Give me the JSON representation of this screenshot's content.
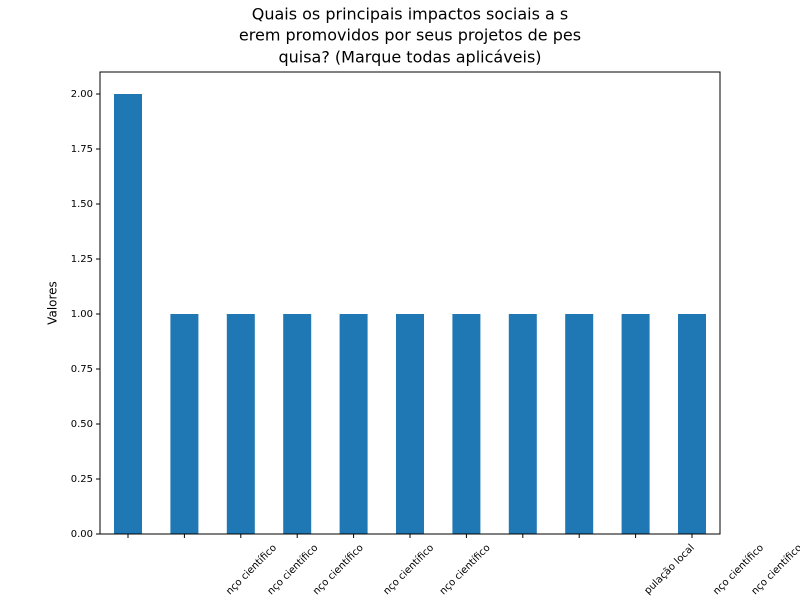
{
  "chart_data": {
    "type": "bar",
    "title": [
      "Quais os principais impactos sociais a s",
      "erem promovidos por seus projetos de pes",
      "quisa? (Marque todas aplicáveis)"
    ],
    "ylabel": "Valores",
    "categories": [
      null,
      null,
      "nço científico",
      "nço científico",
      "nço científico",
      "nço científico",
      "nço científico",
      "nço científico",
      "nço científico",
      "pulação local",
      null
    ],
    "values": [
      2,
      1,
      1,
      1,
      1,
      1,
      1,
      1,
      1,
      1,
      1
    ],
    "color": "#1f77b4",
    "ylim": [
      0,
      2.1
    ],
    "yticks": [
      {
        "value": 0,
        "label": "0.00"
      },
      {
        "value": 0.25,
        "label": "0.25"
      },
      {
        "value": 0.5,
        "label": "0.50"
      },
      {
        "value": 0.75,
        "label": "0.75"
      },
      {
        "value": 1,
        "label": "1.00"
      },
      {
        "value": 1.25,
        "label": "1.25"
      },
      {
        "value": 1.5,
        "label": "1.50"
      },
      {
        "value": 1.75,
        "label": "1.75"
      },
      {
        "value": 2,
        "label": "2.00"
      }
    ],
    "grid": false
  }
}
